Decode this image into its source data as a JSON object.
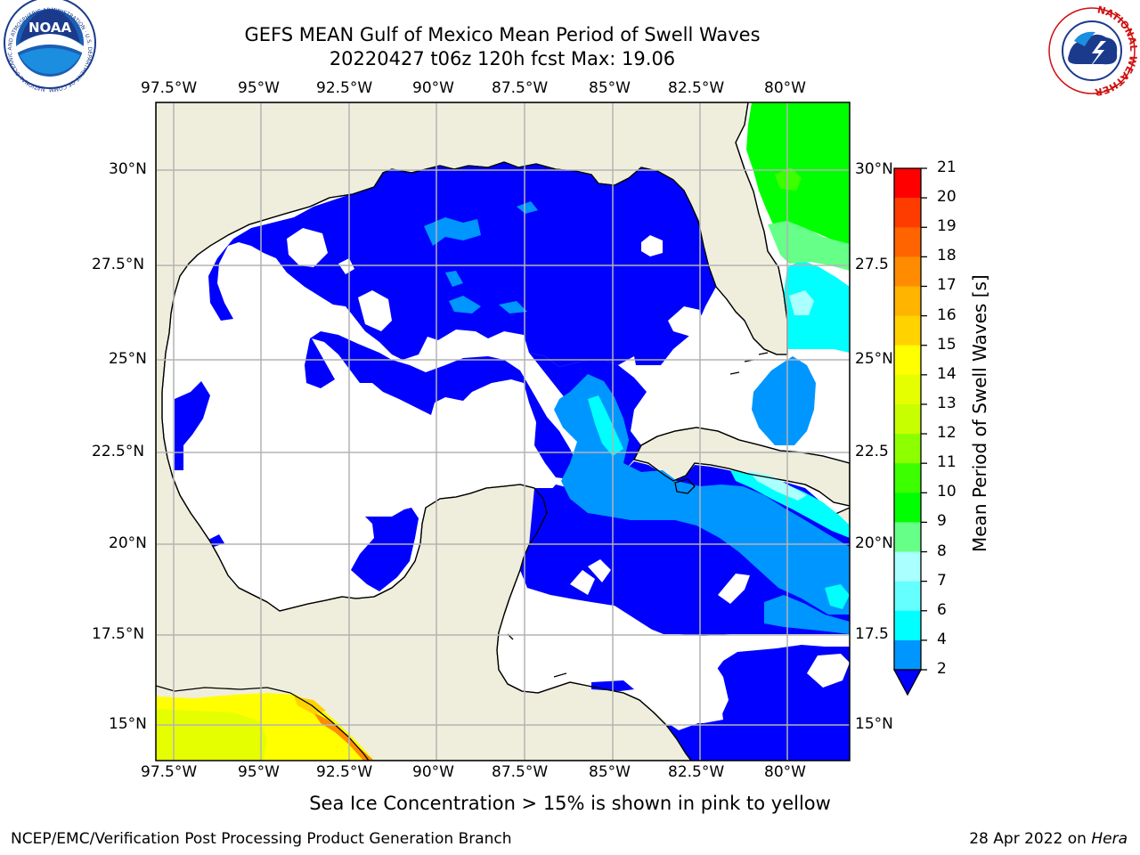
{
  "title": {
    "line1": "GEFS MEAN Gulf of Mexico Mean Period of Swell Waves",
    "line2": "20220427 t06z 120h fcst   Max: 19.06"
  },
  "axes": {
    "lon_labels": [
      "97.5°W",
      "95°W",
      "92.5°W",
      "90°W",
      "87.5°W",
      "85°W",
      "82.5°W",
      "80°W"
    ],
    "lat_labels_left": [
      "30°N",
      "27.5°N",
      "25°N",
      "22.5°N",
      "20°N",
      "17.5°N",
      "15°N"
    ],
    "lat_labels_right": [
      "30°N",
      "27.5",
      "25°N",
      "22.5",
      "20°N",
      "17.5",
      "15°N"
    ]
  },
  "colorbar": {
    "label": "Mean Period of Swell Waves [s]",
    "ticks": [
      "21",
      "20",
      "19",
      "18",
      "17",
      "16",
      "15",
      "14",
      "13",
      "12",
      "11",
      "10",
      "9",
      "8",
      "7",
      "6",
      "4",
      "2"
    ],
    "colors": [
      "#ff0000",
      "#ff3c00",
      "#ff6400",
      "#ff8c00",
      "#ffb400",
      "#ffd200",
      "#ffff00",
      "#e6ff00",
      "#c8ff00",
      "#8cff00",
      "#3cff00",
      "#00ff00",
      "#66ff88",
      "#aaffff",
      "#66ffff",
      "#00ffff",
      "#0096ff",
      "#0000ff"
    ]
  },
  "caption": "Sea Ice Concentration > 15% is shown in pink to yellow",
  "footer": {
    "left": "NCEP/EMC/Verification Post Processing Product Generation Branch",
    "right_date": "28 Apr 2022 on ",
    "right_host": "Hera"
  },
  "logos": {
    "noaa": "NOAA",
    "noaa_ring": "NATIONAL OCEANIC AND ATMOSPHERIC ADMINISTRATION · U.S. DEPARTMENT OF COMMERCE",
    "nws_ring": "NATIONAL WEATHER SERVICE"
  },
  "colors": {
    "land": "#efeedc",
    "grid": "#b4b4b4",
    "blue": "#0000ff",
    "mid_blue": "#0096ff",
    "cyan": "#00ffff",
    "green": "#00ff00",
    "yellow": "#ffff00"
  }
}
